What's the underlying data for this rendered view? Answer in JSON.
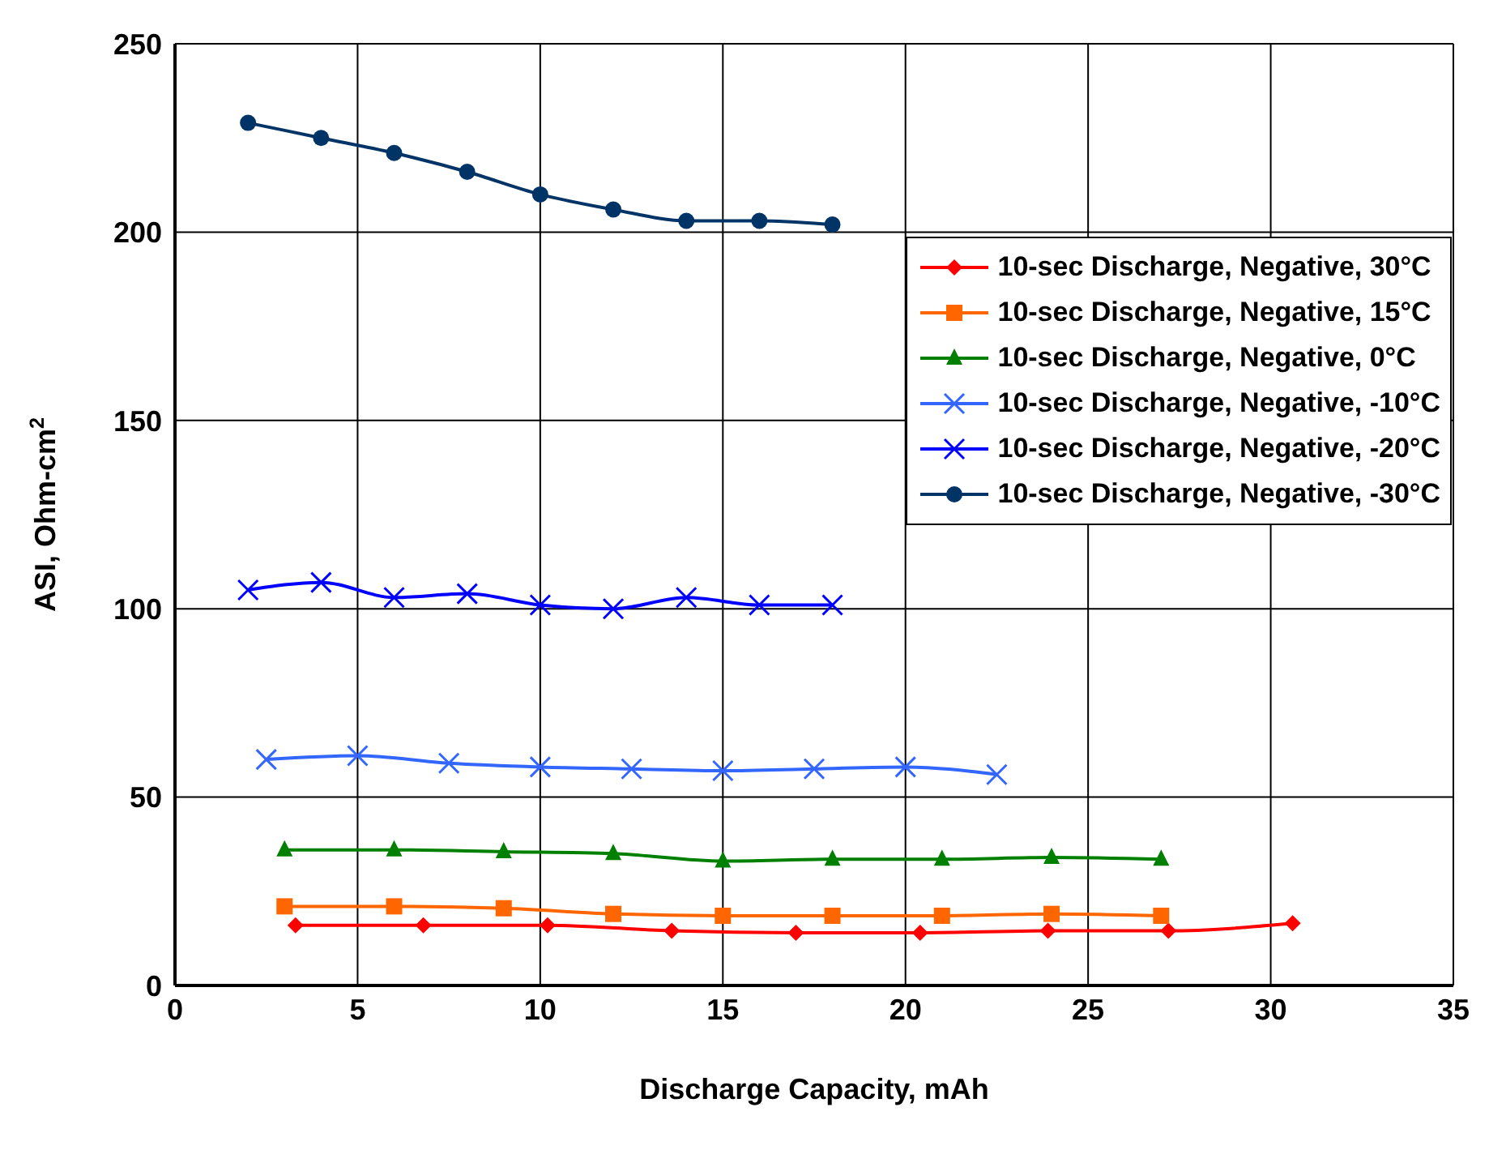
{
  "chart_data": {
    "type": "line",
    "xlabel": "Discharge Capacity, mAh",
    "ylabel": "ASI, Ohm-cm$^{2}$",
    "xlim": [
      0,
      35
    ],
    "xticks": [
      0,
      5,
      10,
      15,
      20,
      25,
      30,
      35
    ],
    "ylim": [
      0,
      250
    ],
    "yticks": [
      0,
      50,
      100,
      150,
      200,
      250
    ],
    "grid": true,
    "legend": "top right",
    "series": [
      {
        "name": "10-sec Discharge, Negative, 30°C",
        "color": "#ff0000",
        "marker": "diamond",
        "x": [
          3.3,
          6.8,
          10.2,
          13.6,
          17,
          20.4,
          23.9,
          27.2,
          30.6
        ],
        "values": [
          16,
          16,
          16,
          14.5,
          14,
          14,
          14.5,
          14.5,
          16.5
        ]
      },
      {
        "name": "10-sec Discharge, Negative, 15°C",
        "color": "#ff6600",
        "marker": "square",
        "x": [
          3,
          6,
          9,
          12,
          15,
          18,
          21,
          24,
          27
        ],
        "values": [
          21,
          21,
          20.5,
          19,
          18.5,
          18.5,
          18.5,
          19,
          18.5
        ]
      },
      {
        "name": "10-sec Discharge, Negative, 0°C",
        "color": "#008000",
        "marker": "triangle",
        "x": [
          3,
          6,
          9,
          12,
          15,
          18,
          21,
          24,
          27
        ],
        "values": [
          36,
          36,
          35.5,
          35,
          33,
          33.5,
          33.5,
          34,
          33.5
        ]
      },
      {
        "name": "10-sec Discharge, Negative, -10°C",
        "color": "#3366ff",
        "marker": "cross",
        "x": [
          2.5,
          5,
          7.5,
          10,
          12.5,
          15,
          17.5,
          20,
          22.5
        ],
        "values": [
          60,
          61,
          59,
          58,
          57.5,
          57,
          57.5,
          58,
          56
        ]
      },
      {
        "name": "10-sec Discharge, Negative, -20°C",
        "color": "#0000ff",
        "marker": "cross",
        "x": [
          2,
          4,
          6,
          8,
          10,
          12,
          14,
          16,
          18
        ],
        "values": [
          105,
          107,
          103,
          104,
          101,
          100,
          103,
          101,
          101
        ]
      },
      {
        "name": "10-sec Discharge, Negative, -30°C",
        "color": "#003366",
        "marker": "circle",
        "x": [
          2,
          4,
          6,
          8,
          10,
          12,
          14,
          16,
          18
        ],
        "values": [
          229,
          225,
          221,
          216,
          210,
          206,
          203,
          203,
          202
        ]
      }
    ]
  }
}
